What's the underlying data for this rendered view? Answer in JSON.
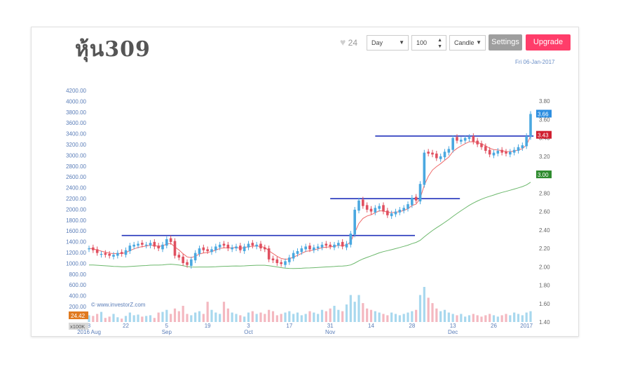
{
  "header": {
    "title": "หุ้น309",
    "likes": "24",
    "interval": "Day",
    "count": "100",
    "chart_type": "Candle",
    "settings_label": "Settings",
    "upgrade_label": "Upgrade",
    "date": "Fri 06-Jan-2017"
  },
  "colors": {
    "up": "#4aa8e0",
    "down": "#e05060",
    "vol_up": "#a8d8ee",
    "vol_down": "#f4b8c0",
    "ema_fast": "#ef6a6a",
    "ema_slow": "#6cb86c",
    "resistance": "#2233bb"
  },
  "chart_data": {
    "type": "candlestick",
    "watermark": "© www.investorZ.com",
    "volume_label": "24.42",
    "volume_unit": "x100K",
    "left_axis": {
      "ticks": [
        "200.00",
        "400.00",
        "600.00",
        "800.00",
        "1000.00",
        "1200.00",
        "1400.00",
        "1600.00",
        "1800.00",
        "2000.00",
        "2200.00",
        "2400.00",
        "2600.00",
        "2800.00",
        "3000.00",
        "3200.00",
        "3400.00",
        "3600.00",
        "3800.00",
        "4000.00",
        "4200.00"
      ],
      "values": [
        200,
        400,
        600,
        800,
        1000,
        1200,
        1400,
        1600,
        1800,
        2000,
        2200,
        2400,
        2600,
        2800,
        3000,
        3200,
        3400,
        3600,
        3800,
        4000,
        4200
      ]
    },
    "right_axis": {
      "ticks": [
        "1.40",
        "1.60",
        "1.80",
        "2.00",
        "2.20",
        "2.40",
        "2.60",
        "2.80",
        "3.00",
        "3.20",
        "3.40",
        "3.60",
        "3.80"
      ],
      "values": [
        1.4,
        1.6,
        1.8,
        2.0,
        2.2,
        2.4,
        2.6,
        2.8,
        3.0,
        3.2,
        3.4,
        3.6,
        3.8
      ],
      "ylim": [
        1.4,
        3.9
      ]
    },
    "x_ticks": [
      {
        "label": "8",
        "sub": "2016 Aug",
        "index": 0
      },
      {
        "label": "22",
        "sub": "",
        "index": 9
      },
      {
        "label": "5",
        "sub": "Sep",
        "index": 19
      },
      {
        "label": "19",
        "sub": "",
        "index": 29
      },
      {
        "label": "3",
        "sub": "Oct",
        "index": 39
      },
      {
        "label": "17",
        "sub": "",
        "index": 49
      },
      {
        "label": "31",
        "sub": "Nov",
        "index": 59
      },
      {
        "label": "14",
        "sub": "",
        "index": 69
      },
      {
        "label": "28",
        "sub": "",
        "index": 79
      },
      {
        "label": "13",
        "sub": "Dec",
        "index": 89
      },
      {
        "label": "26",
        "sub": "",
        "index": 99
      },
      {
        "label": "2017",
        "sub": "",
        "index": 107
      }
    ],
    "badges": [
      {
        "text": "3.66",
        "value": 3.66,
        "color": "#2d8ee0"
      },
      {
        "text": "3.43",
        "value": 3.43,
        "color": "#d02030"
      },
      {
        "text": "3.00",
        "value": 3.0,
        "color": "#2e8b2e"
      }
    ],
    "resistance_lines": [
      {
        "from": 8,
        "to": 78,
        "value": 2.34
      },
      {
        "from": 59,
        "to": 89,
        "value": 2.74
      },
      {
        "from": 70,
        "to": 107,
        "value": 3.42
      }
    ],
    "close": [
      2.2,
      2.18,
      2.15,
      2.14,
      2.13,
      2.12,
      2.13,
      2.15,
      2.14,
      2.18,
      2.23,
      2.24,
      2.25,
      2.24,
      2.24,
      2.26,
      2.22,
      2.2,
      2.24,
      2.3,
      2.27,
      2.12,
      2.1,
      2.04,
      2.02,
      2.08,
      2.15,
      2.2,
      2.18,
      2.17,
      2.19,
      2.22,
      2.24,
      2.23,
      2.2,
      2.21,
      2.22,
      2.18,
      2.22,
      2.25,
      2.23,
      2.24,
      2.2,
      2.19,
      2.08,
      2.07,
      2.04,
      2.03,
      2.06,
      2.1,
      2.15,
      2.17,
      2.2,
      2.22,
      2.19,
      2.21,
      2.22,
      2.24,
      2.23,
      2.22,
      2.24,
      2.26,
      2.22,
      2.25,
      2.36,
      2.62,
      2.72,
      2.66,
      2.62,
      2.6,
      2.64,
      2.66,
      2.6,
      2.56,
      2.58,
      2.6,
      2.62,
      2.64,
      2.68,
      2.75,
      2.72,
      2.9,
      3.24,
      3.23,
      3.22,
      3.18,
      3.2,
      3.25,
      3.28,
      3.4,
      3.37,
      3.38,
      3.4,
      3.41,
      3.36,
      3.33,
      3.3,
      3.26,
      3.22,
      3.24,
      3.26,
      3.24,
      3.23,
      3.25,
      3.27,
      3.3,
      3.32,
      3.42,
      3.66
    ],
    "up": [
      1,
      0,
      0,
      1,
      0,
      0,
      1,
      1,
      0,
      1,
      1,
      1,
      1,
      0,
      1,
      1,
      0,
      0,
      1,
      1,
      0,
      0,
      0,
      0,
      0,
      1,
      1,
      1,
      0,
      0,
      1,
      1,
      1,
      0,
      0,
      1,
      1,
      0,
      1,
      1,
      0,
      1,
      0,
      0,
      0,
      0,
      0,
      0,
      1,
      1,
      1,
      1,
      1,
      1,
      0,
      1,
      1,
      1,
      0,
      0,
      1,
      1,
      0,
      1,
      1,
      1,
      1,
      0,
      0,
      0,
      1,
      1,
      0,
      0,
      1,
      1,
      1,
      1,
      1,
      1,
      0,
      1,
      1,
      0,
      0,
      0,
      1,
      1,
      1,
      1,
      0,
      1,
      1,
      1,
      0,
      0,
      0,
      0,
      0,
      1,
      1,
      0,
      0,
      1,
      1,
      1,
      1,
      1,
      1
    ],
    "volume": [
      10,
      9,
      12,
      15,
      6,
      8,
      12,
      7,
      5,
      9,
      14,
      10,
      11,
      8,
      9,
      10,
      6,
      14,
      15,
      18,
      12,
      20,
      16,
      24,
      12,
      10,
      14,
      16,
      12,
      30,
      18,
      14,
      12,
      30,
      20,
      14,
      12,
      10,
      8,
      14,
      16,
      12,
      14,
      12,
      18,
      16,
      10,
      12,
      14,
      16,
      12,
      14,
      10,
      12,
      16,
      14,
      12,
      18,
      16,
      20,
      24,
      18,
      16,
      26,
      40,
      30,
      40,
      28,
      20,
      18,
      16,
      14,
      12,
      10,
      14,
      12,
      10,
      12,
      14,
      16,
      18,
      40,
      52,
      36,
      28,
      20,
      16,
      18,
      14,
      12,
      10,
      12,
      8,
      10,
      12,
      10,
      8,
      10,
      12,
      10,
      8,
      10,
      12,
      10,
      14,
      12,
      10,
      14,
      16
    ],
    "series": [
      {
        "name": "",
        "type": "ema_fast"
      },
      {
        "name": "",
        "type": "ema_slow"
      }
    ]
  }
}
